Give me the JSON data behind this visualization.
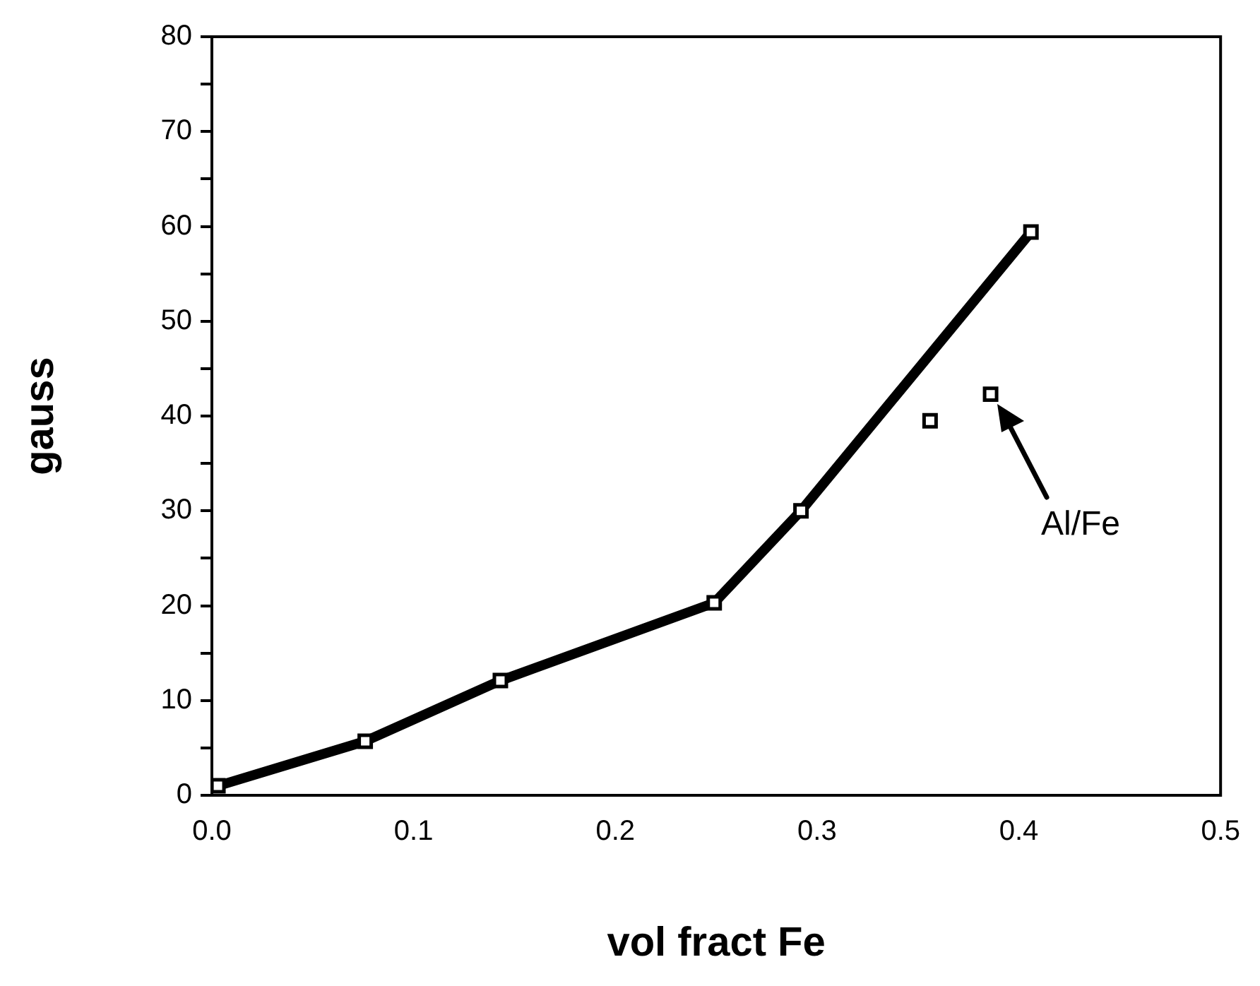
{
  "chart_data": {
    "type": "line",
    "xlabel": "vol fract Fe",
    "ylabel": "gauss",
    "series": [
      {
        "color": "#000000",
        "x": [
          0.003,
          0.076,
          0.143,
          0.249,
          0.292,
          0.406
        ],
        "values": [
          1,
          5.7,
          12.1,
          20.3,
          30,
          59.4
        ]
      },
      {
        "type": "scatter",
        "color": "#000000",
        "x": [
          0.356,
          0.386
        ],
        "values": [
          39.5,
          42.3
        ]
      }
    ],
    "xlim": [
      0,
      0.5
    ],
    "xticks": [
      {
        "value": 0,
        "label": "0.0"
      },
      0.1,
      0.2,
      0.3,
      0.4,
      0.5
    ],
    "ylim": [
      0,
      80
    ],
    "yticks": [
      0,
      {
        "value": 5,
        "label": null
      },
      10,
      {
        "value": 15,
        "label": null
      },
      20,
      {
        "value": 25,
        "label": null
      },
      30,
      {
        "value": 35,
        "label": null
      },
      40,
      {
        "value": 45,
        "label": null
      },
      50,
      {
        "value": 55,
        "label": null
      },
      60,
      {
        "value": 65,
        "label": null
      },
      70,
      {
        "value": 75,
        "label": null
      },
      80
    ],
    "grid": false,
    "legend": false,
    "marker": "square",
    "line_style": "solid",
    "annotations": [
      "Al/Fe"
    ]
  }
}
